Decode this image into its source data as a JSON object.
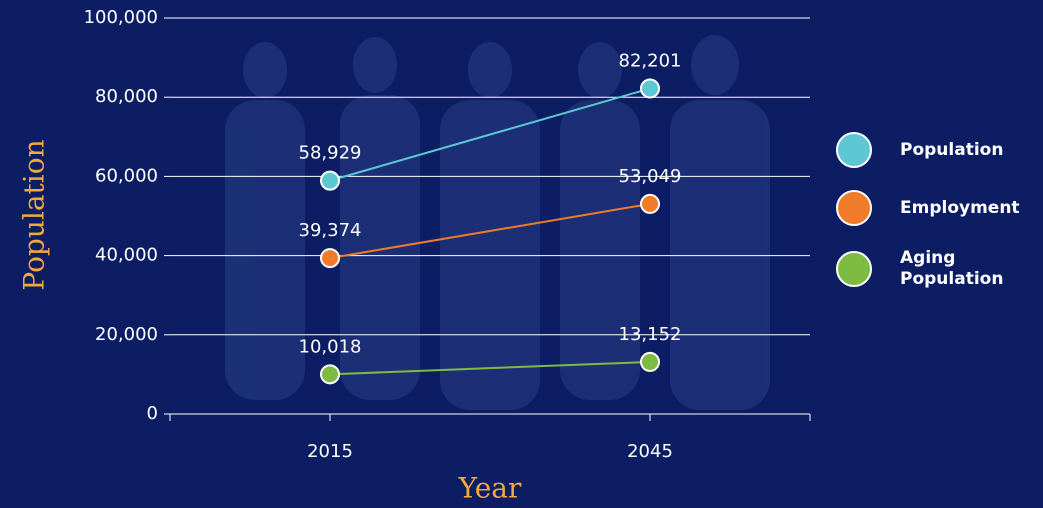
{
  "chart_data": {
    "type": "line",
    "x_label": "Year",
    "y_label": "Population",
    "categories": [
      "2015",
      "2045"
    ],
    "series": [
      {
        "name": "Population",
        "color": "#5cc8d4",
        "values": [
          58929,
          82201
        ],
        "value_labels": [
          "58,929",
          "82,201"
        ]
      },
      {
        "name": "Employment",
        "color": "#f07b2a",
        "values": [
          39374,
          53049
        ],
        "value_labels": [
          "39,374",
          "53,049"
        ]
      },
      {
        "name": "Aging Population",
        "color": "#7dbb42",
        "values": [
          10018,
          13152
        ],
        "value_labels": [
          "10,018",
          "13,152"
        ]
      }
    ],
    "ylim": [
      0,
      100000
    ],
    "yticks": [
      0,
      {
        "value": 20000,
        "label": "20,000"
      },
      {
        "value": 40000,
        "label": "40,000"
      },
      {
        "value": 60000,
        "label": "60,000"
      },
      {
        "value": 80000,
        "label": "80,000"
      },
      {
        "value": 100000,
        "label": "100,000"
      }
    ],
    "grid": true,
    "legend": "right"
  }
}
